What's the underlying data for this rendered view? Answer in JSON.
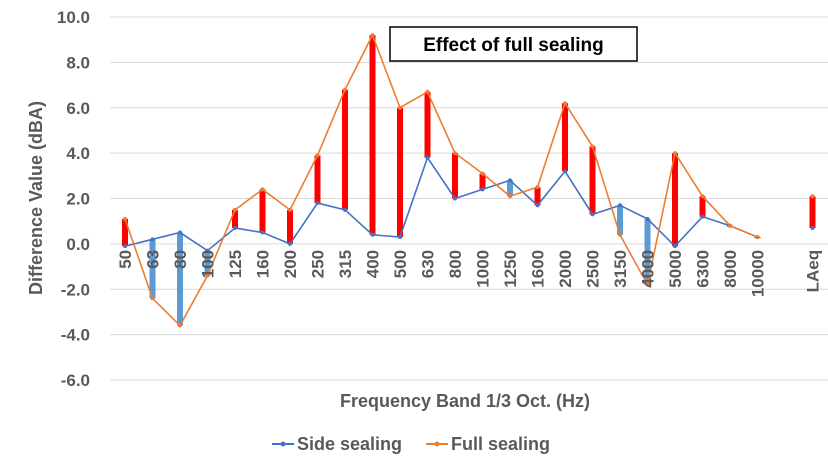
{
  "chart_data": {
    "type": "line",
    "title": "Effect of full sealing",
    "xlabel": "Frequency Band 1/3 Oct. (Hz)",
    "ylabel": "Difference Value (dBA)",
    "ylim": [
      -6,
      10
    ],
    "yticks": [
      "-6.0",
      "-4.0",
      "-2.0",
      "0.0",
      "2.0",
      "4.0",
      "6.0",
      "8.0",
      "10.0"
    ],
    "categories": [
      "50",
      "63",
      "80",
      "100",
      "125",
      "160",
      "200",
      "250",
      "315",
      "400",
      "500",
      "630",
      "800",
      "1000",
      "1250",
      "1600",
      "2000",
      "2500",
      "3150",
      "4000",
      "5000",
      "6300",
      "8000",
      "10000",
      "",
      "LAeq"
    ],
    "series": [
      {
        "name": "Side sealing",
        "color": "#4472C4",
        "values": [
          -0.1,
          0.2,
          0.5,
          -0.3,
          0.7,
          0.5,
          0.0,
          1.8,
          1.5,
          0.4,
          0.3,
          3.8,
          2.0,
          2.4,
          2.8,
          1.7,
          3.2,
          1.3,
          1.7,
          1.1,
          -0.1,
          1.2,
          0.8,
          0.3,
          null,
          0.7
        ]
      },
      {
        "name": "Full sealing",
        "color": "#ED7D31",
        "values": [
          1.1,
          -2.4,
          -3.6,
          -1.4,
          1.5,
          2.4,
          1.5,
          3.9,
          6.8,
          9.2,
          6.0,
          6.7,
          4.0,
          3.1,
          2.1,
          2.5,
          6.2,
          4.3,
          0.4,
          -1.8,
          4.0,
          2.1,
          0.8,
          0.3,
          null,
          2.1
        ]
      }
    ],
    "bars": {
      "up_color": "#FF0000",
      "down_color": "#5B9BD5"
    },
    "legend": "bottom"
  }
}
